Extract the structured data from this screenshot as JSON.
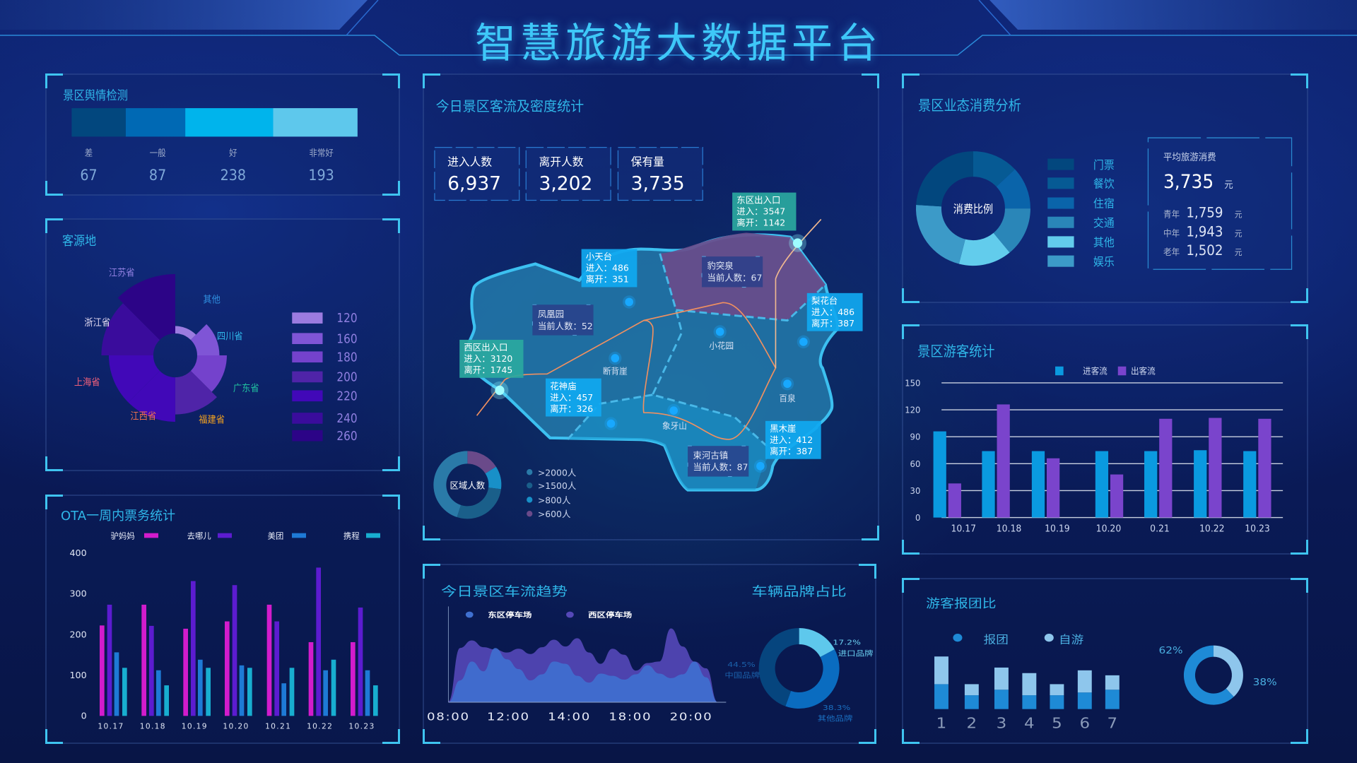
{
  "title": "智慧旅游大数据平台",
  "sentiment": {
    "title": "景区舆情检测",
    "levels": [
      {
        "label": "差",
        "value": "67"
      },
      {
        "label": "一般",
        "value": "87"
      },
      {
        "label": "好",
        "value": "238"
      },
      {
        "label": "非常好",
        "value": "193"
      }
    ],
    "colors": [
      "#02477e",
      "#0069b4",
      "#00b4ec",
      "#5ec8ec"
    ]
  },
  "origin": {
    "title": "客源地",
    "legend": [
      {
        "value": "120",
        "color": "#9b7be0"
      },
      {
        "value": "160",
        "color": "#7f55d6"
      },
      {
        "value": "180",
        "color": "#7442cc"
      },
      {
        "value": "200",
        "color": "#4f24a8"
      },
      {
        "value": "220",
        "color": "#4108b8"
      },
      {
        "value": "240",
        "color": "#3a0c9c"
      },
      {
        "value": "260",
        "color": "#2c0487"
      }
    ]
  },
  "map": {
    "title": "今日景区客流及密度统计",
    "stats": [
      {
        "label": "进入人数",
        "value": "6,937"
      },
      {
        "label": "离开人数",
        "value": "3,202"
      },
      {
        "label": "保有量",
        "value": "3,735"
      }
    ],
    "spots": [
      {
        "name": "东区出入口",
        "in": "进入：3547",
        "out": "离开：1142",
        "kind": "gate"
      },
      {
        "name": "小天台",
        "in": "进入：486",
        "out": "离开：351",
        "kind": "flow"
      },
      {
        "name": "西区出入口",
        "in": "进入：3120",
        "out": "离开：1745",
        "kind": "gate"
      },
      {
        "name": "梨花台",
        "in": "进入：486",
        "out": "离开：387",
        "kind": "flow"
      },
      {
        "name": "花神庙",
        "in": "进入：457",
        "out": "离开：326",
        "kind": "flow"
      },
      {
        "name": "黑木崖",
        "in": "进入：412",
        "out": "离开：387",
        "kind": "flow"
      }
    ],
    "current": [
      {
        "name": "豹突泉",
        "count": "当前人数：67"
      },
      {
        "name": "凤凰园",
        "count": "当前人数：52"
      },
      {
        "name": "束河古镇",
        "count": "当前人数：87"
      }
    ],
    "places": [
      "断背崖",
      "小花园",
      "百泉",
      "象牙山"
    ],
    "density": {
      "label": "区域人数",
      "legend": [
        ">2000人",
        ">1500人",
        ">800人",
        ">600人"
      ],
      "colors": [
        "#2a7aa8",
        "#1a5f8a",
        "#1890c8",
        "#6a4a8a"
      ],
      "shares": [
        45,
        28,
        11,
        16
      ]
    },
    "colors": {
      "land": "#2480b0",
      "hot": "#6a4a8a",
      "route": "#f09060",
      "border": "#3cc0f0"
    }
  },
  "consumption": {
    "title": "景区业态消费分析",
    "center": "消费比例",
    "avg_title": "平均旅游消费",
    "avg_value": "3,735",
    "unit": "元",
    "groups": [
      {
        "label": "青年",
        "value": "1,759"
      },
      {
        "label": "中年",
        "value": "1,943"
      },
      {
        "label": "老年",
        "value": "1,502"
      }
    ]
  },
  "visitors": {
    "title": "景区游客统计"
  },
  "car": {
    "title": "今日景区车流趋势",
    "brand_title": "车辆品牌占比"
  },
  "group": {
    "title": "游客报团比"
  },
  "chart_data": [
    {
      "id": "ota",
      "type": "bar",
      "title": "OTA一周内票务统计",
      "categories": [
        "10.17",
        "10.18",
        "10.19",
        "10.20",
        "10.21",
        "10.22",
        "10.23"
      ],
      "ylim": [
        0,
        400
      ],
      "yticks": [
        0,
        100,
        200,
        300,
        400
      ],
      "series": [
        {
          "name": "驴妈妈",
          "color": "#d21ccc",
          "values": [
            222,
            273,
            214,
            232,
            273,
            181,
            181
          ]
        },
        {
          "name": "去哪儿",
          "color": "#5c1cd0",
          "values": [
            273,
            221,
            331,
            321,
            232,
            364,
            266
          ]
        },
        {
          "name": "美团",
          "color": "#1e7ad6",
          "values": [
            156,
            112,
            138,
            124,
            80,
            112,
            112
          ]
        },
        {
          "name": "携程",
          "color": "#18aed0",
          "values": [
            118,
            75,
            118,
            118,
            118,
            138,
            75
          ]
        }
      ]
    },
    {
      "id": "visitors",
      "type": "bar",
      "categories": [
        "10.17",
        "10.18",
        "10.19",
        "10.20",
        "0.21",
        "10.22",
        "10.23"
      ],
      "ylim": [
        0,
        150
      ],
      "yticks": [
        0,
        30,
        60,
        90,
        120,
        150
      ],
      "grid": true,
      "series": [
        {
          "name": "进客流",
          "color": "#0a9ae0",
          "values": [
            96,
            74,
            74,
            74,
            74,
            75,
            74
          ]
        },
        {
          "name": "出客流",
          "color": "#7a44cc",
          "values": [
            38,
            126,
            66,
            48,
            110,
            111,
            110
          ]
        }
      ]
    },
    {
      "id": "car_flow",
      "type": "area",
      "xticks": [
        "08:00",
        "12:00",
        "14:00",
        "18:00",
        "20:00"
      ],
      "series": [
        {
          "name": "东区停车场",
          "color": "#3f70d0",
          "values": [
            0,
            29,
            54,
            41,
            72,
            57,
            44,
            29,
            37,
            54,
            51,
            35,
            26,
            38,
            35,
            30,
            37,
            49,
            38,
            32,
            37,
            54,
            33,
            0
          ]
        },
        {
          "name": "西区停车场",
          "color": "#5548b8",
          "values": [
            1,
            72,
            82,
            73,
            70,
            66,
            71,
            64,
            73,
            83,
            74,
            85,
            66,
            51,
            71,
            63,
            42,
            52,
            54,
            98,
            74,
            54,
            45,
            0
          ]
        }
      ]
    },
    {
      "id": "car_brand",
      "type": "pie",
      "slices": [
        {
          "label": "进口品牌",
          "value": 17.2,
          "text": "17.2%",
          "color": "#5ec8ec"
        },
        {
          "label": "其他品牌",
          "value": 38.3,
          "text": "38.3%",
          "color": "#0a6cc0"
        },
        {
          "label": "中国品牌",
          "value": 44.5,
          "text": "44.5%",
          "color": "#06457e"
        }
      ]
    },
    {
      "id": "group_bar",
      "type": "bar",
      "stacked": true,
      "categories": [
        "1",
        "2",
        "3",
        "4",
        "5",
        "6",
        "7"
      ],
      "series": [
        {
          "name": "报团",
          "color": "#1e8ad6",
          "values": [
            45,
            25,
            35,
            25,
            25,
            30,
            35
          ]
        },
        {
          "name": "自游",
          "color": "#8ec6ec",
          "values": [
            50,
            20,
            40,
            40,
            20,
            40,
            26
          ]
        }
      ]
    },
    {
      "id": "group_pie",
      "type": "pie",
      "slices": [
        {
          "label": "自游",
          "value": 38,
          "text": "38%",
          "color": "#8ec6ec"
        },
        {
          "label": "报团",
          "value": 62,
          "text": "62%",
          "color": "#1e8ad6"
        }
      ]
    },
    {
      "id": "consumption_pie",
      "type": "pie",
      "slices": [
        {
          "label": "门票",
          "value": 24,
          "color": "#02477e"
        },
        {
          "label": "餐饮",
          "value": 13,
          "color": "#065a94"
        },
        {
          "label": "住宿",
          "value": 12,
          "color": "#0a64aa"
        },
        {
          "label": "交通",
          "value": 14,
          "color": "#2a86b8"
        },
        {
          "label": "其他",
          "value": 15,
          "color": "#62ccec"
        },
        {
          "label": "娱乐",
          "value": 22,
          "color": "#3c9ac8"
        }
      ]
    },
    {
      "id": "origin_rose",
      "type": "pie",
      "rose": true,
      "slices": [
        {
          "label": "其他",
          "value": 120,
          "color": "#9b7be0",
          "label_color": "#2f8fe0"
        },
        {
          "label": "四川省",
          "value": 160,
          "color": "#7f55d6",
          "label_color": "#2fb6e8"
        },
        {
          "label": "广东省",
          "value": 180,
          "color": "#7442cc",
          "label_color": "#20c0a0"
        },
        {
          "label": "福建省",
          "value": 200,
          "color": "#4f24a8",
          "label_color": "#f0a020"
        },
        {
          "label": "江西省",
          "value": 220,
          "color": "#4108b8",
          "label_color": "#f07050"
        },
        {
          "label": "上海省",
          "value": 220,
          "color": "#4108b8",
          "label_color": "#f0607a"
        },
        {
          "label": "浙江省",
          "value": 240,
          "color": "#3a0c9c",
          "label_color": "#e0d8f0"
        },
        {
          "label": "江苏省",
          "value": 260,
          "color": "#2c0487",
          "label_color": "#8f7fe0"
        }
      ]
    }
  ]
}
